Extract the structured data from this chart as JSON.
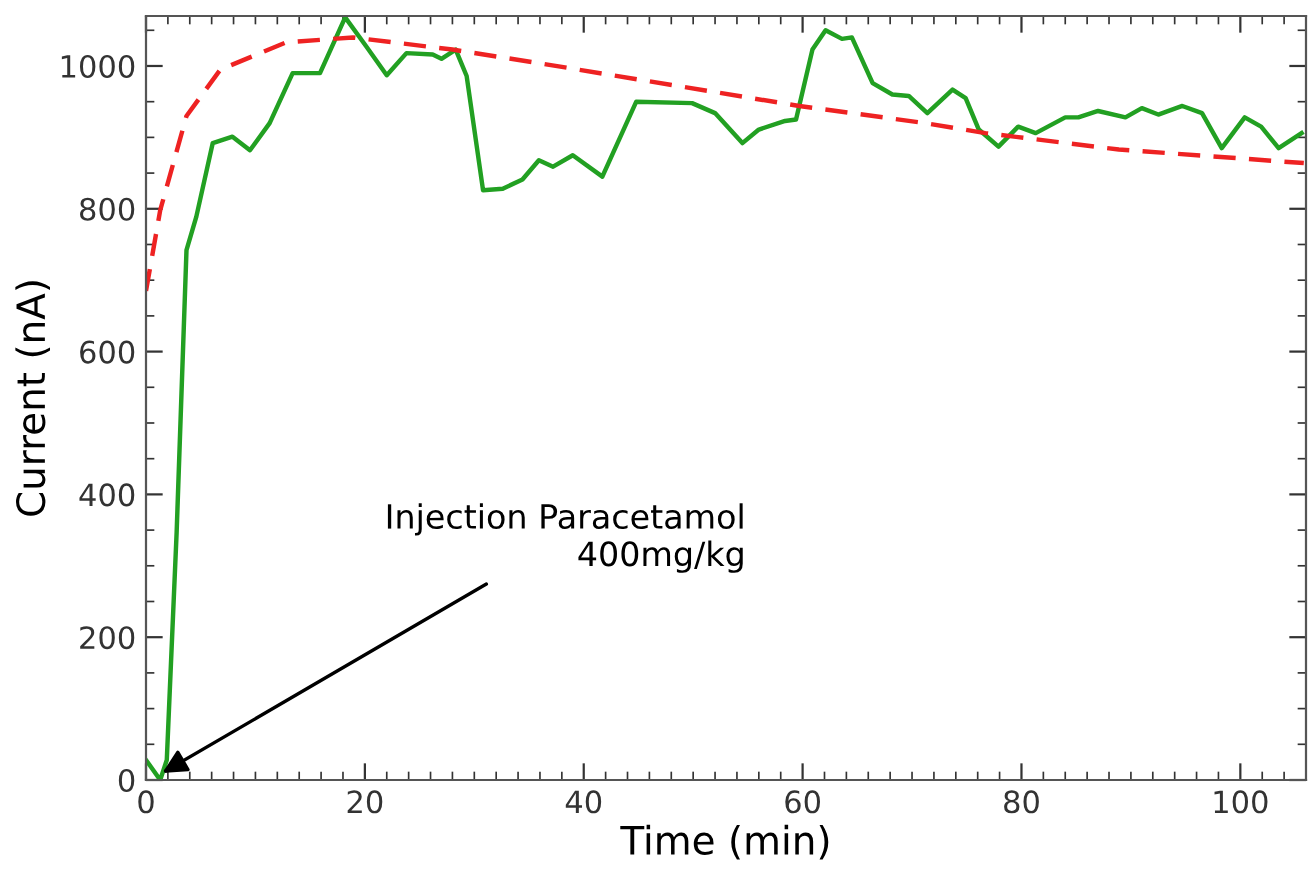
{
  "chart_data": {
    "type": "line",
    "xlabel": "Time (min)",
    "ylabel": "Current (nA)",
    "xlim": [
      0,
      106
    ],
    "ylim": [
      0,
      1070
    ],
    "xticks": [
      0,
      20,
      40,
      60,
      80,
      100
    ],
    "yticks": [
      0,
      200,
      400,
      600,
      800,
      1000
    ],
    "grid": false,
    "marker": "none",
    "annotations": [
      {
        "text": "Injection Paracetamol\n400mg/kg",
        "x": 1.5,
        "y": 10
      }
    ],
    "series": [
      {
        "color": "#22a022",
        "line_style": "solid",
        "x": [
          0,
          1.3,
          1.9,
          2.8,
          3.7,
          4.6,
          6.1,
          7.9,
          9.5,
          11.3,
          13.4,
          15.9,
          18.2,
          20.1,
          22,
          23.8,
          26.2,
          27,
          28.3,
          29.3,
          30.8,
          32.6,
          34.4,
          35.9,
          37.2,
          39,
          41.7,
          44.8,
          49.9,
          52,
          54.5,
          56,
          58.4,
          59.4,
          60.9,
          62.1,
          63.6,
          64.5,
          66.4,
          68.2,
          69.7,
          71.4,
          73.7,
          74.9,
          76.1,
          77.9,
          79.7,
          81.3,
          84,
          85.2,
          87,
          89.5,
          91,
          92.5,
          94.7,
          96.5,
          98.3,
          100.4,
          101.9,
          103.5,
          105.6
        ],
        "values": [
          28,
          0,
          28,
          347,
          742,
          789,
          892,
          901,
          882,
          920,
          990,
          990,
          1068,
          1028,
          987,
          1018,
          1016,
          1010,
          1023,
          986,
          826,
          828,
          841,
          868,
          859,
          875,
          845,
          950,
          948,
          934,
          892,
          911,
          923,
          925,
          1023,
          1050,
          1038,
          1040,
          976,
          960,
          958,
          934,
          967,
          955,
          911,
          887,
          915,
          906,
          928,
          928,
          937,
          928,
          941,
          932,
          944,
          934,
          885,
          928,
          915,
          885,
          906
        ]
      },
      {
        "color": "#ee2222",
        "line_style": "dashed",
        "x": [
          0,
          1.3,
          3.7,
          6.8,
          12.8,
          18.9,
          28,
          35.9,
          59.7,
          71.2,
          76.7,
          88.9,
          105.8
        ],
        "values": [
          685,
          798,
          930,
          995,
          1033,
          1040,
          1023,
          1004,
          944,
          920,
          906,
          883,
          864
        ]
      }
    ]
  }
}
